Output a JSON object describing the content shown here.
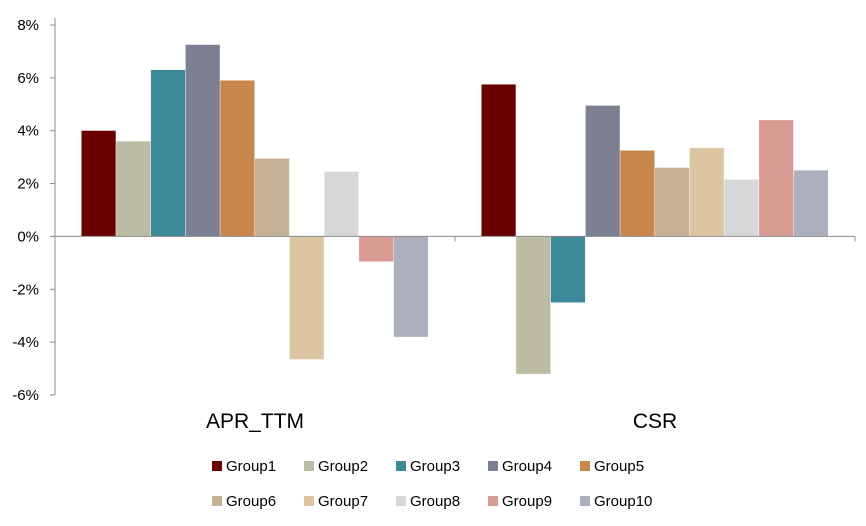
{
  "chart_data": {
    "type": "bar",
    "categories": [
      "APR_TTM",
      "CSR"
    ],
    "series": [
      {
        "name": "Group1",
        "color": "#6b0000",
        "values": [
          4.0,
          5.75
        ]
      },
      {
        "name": "Group2",
        "color": "#bcbba4",
        "values": [
          3.6,
          -5.2
        ]
      },
      {
        "name": "Group3",
        "color": "#3c8a98",
        "values": [
          6.3,
          -2.5
        ]
      },
      {
        "name": "Group4",
        "color": "#7c7f92",
        "values": [
          7.25,
          4.95
        ]
      },
      {
        "name": "Group5",
        "color": "#c7874b",
        "values": [
          5.9,
          3.25
        ]
      },
      {
        "name": "Group6",
        "color": "#c5b295",
        "values": [
          2.95,
          2.6
        ]
      },
      {
        "name": "Group7",
        "color": "#dbc6a1",
        "values": [
          -4.65,
          3.35
        ]
      },
      {
        "name": "Group8",
        "color": "#d6d7d9",
        "values": [
          2.45,
          2.15
        ]
      },
      {
        "name": "Group9",
        "color": "#d89b93",
        "values": [
          -0.95,
          4.4
        ]
      },
      {
        "name": "Group10",
        "color": "#acb0be",
        "values": [
          -3.8,
          2.5
        ]
      }
    ],
    "y_ticks": [
      "8%",
      "6%",
      "4%",
      "2%",
      "0%",
      "-2%",
      "-4%",
      "-6%"
    ],
    "ylim": [
      -6,
      8
    ],
    "title": "",
    "xlabel": "",
    "ylabel": "",
    "grid": false,
    "legend_position": "bottom"
  }
}
